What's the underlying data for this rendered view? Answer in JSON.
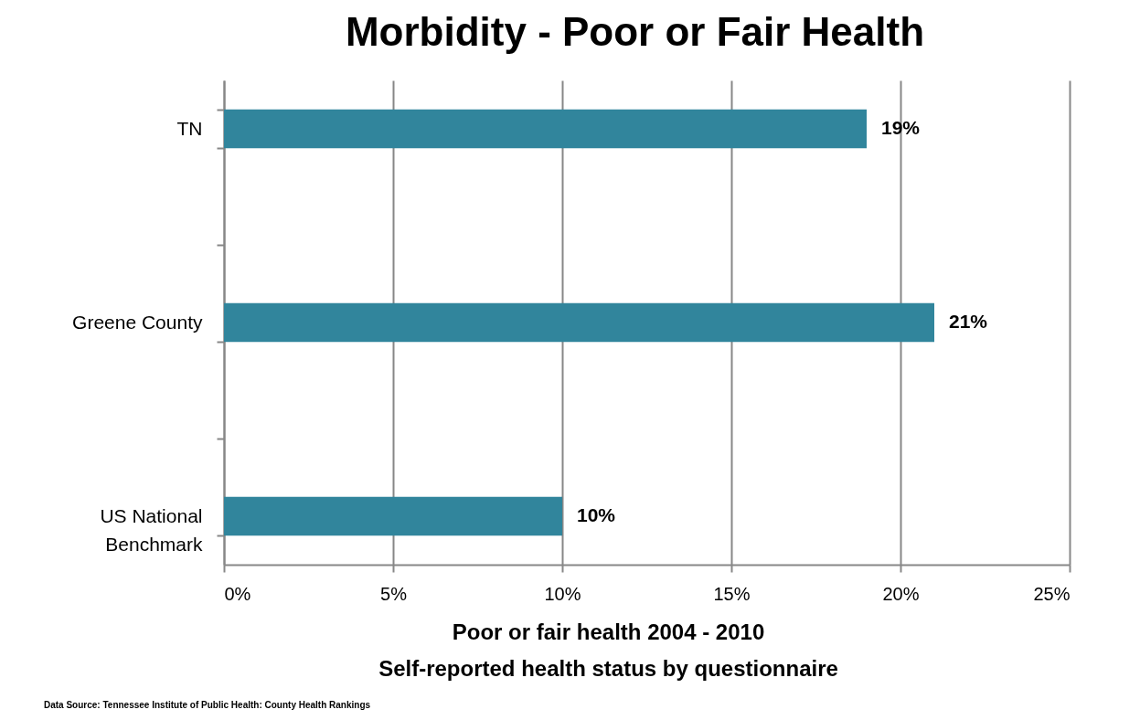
{
  "chart_data": {
    "type": "bar",
    "orientation": "horizontal",
    "title": "Morbidity - Poor or Fair Health",
    "xlabel": "Poor or fair health 2004 - 2010\nSelf-reported health status by questionnaire",
    "categories": [
      "TN",
      null,
      "Greene County",
      null,
      "US National Benchmark"
    ],
    "values": [
      19,
      null,
      21,
      null,
      10
    ],
    "value_labels": [
      "19%",
      null,
      "21%",
      null,
      "10%"
    ],
    "color": "#31859c",
    "xlim": [
      0,
      25
    ],
    "xticks": [
      {
        "value": 0,
        "label": "0%"
      },
      {
        "value": 5,
        "label": "5%"
      },
      {
        "value": 10,
        "label": "10%"
      },
      {
        "value": 15,
        "label": "15%"
      },
      {
        "value": 20,
        "label": "20%"
      },
      {
        "value": 25,
        "label": "25%"
      }
    ],
    "grid": "x",
    "annotations": [
      "Data Source: Tennessee Institute of Public Health: County Health Rankings"
    ]
  }
}
